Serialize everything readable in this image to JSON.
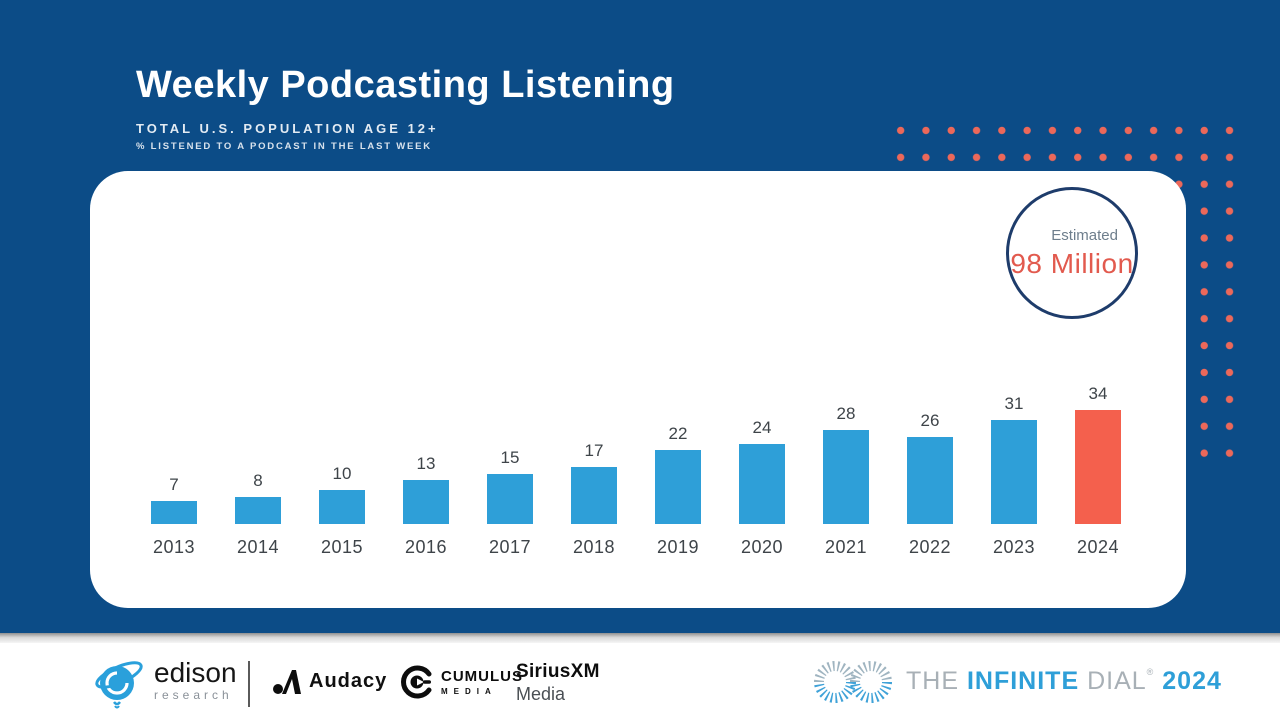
{
  "slide": {
    "title": "Weekly Podcasting Listening",
    "subtitle": "TOTAL U.S. POPULATION AGE 12+",
    "subtitle2": "% LISTENED TO A PODCAST IN THE LAST WEEK"
  },
  "badge": {
    "label": "Estimated",
    "value": "98 Million"
  },
  "chart_data": {
    "type": "bar",
    "categories": [
      "2013",
      "2014",
      "2015",
      "2016",
      "2017",
      "2018",
      "2019",
      "2020",
      "2021",
      "2022",
      "2023",
      "2024"
    ],
    "values": [
      7,
      8,
      10,
      13,
      15,
      17,
      22,
      24,
      28,
      26,
      31,
      34
    ],
    "title": "Weekly Podcasting Listening",
    "xlabel": "",
    "ylabel": "% listened to a podcast in the last week",
    "ylim": [
      0,
      40
    ],
    "grid": false,
    "value_labels": true,
    "bar_color": "#2E9FD8",
    "highlight_color": "#F4604D",
    "highlight_index": 11
  },
  "colors": {
    "background_navy": "#0C4C87",
    "card_white": "#FFFFFF",
    "dot_salmon": "#EC685A",
    "badge_border_navy": "#1E3C6B",
    "badge_value_orange": "#E25A4E",
    "accent_blue": "#2E9FD8"
  },
  "footer": {
    "edison": {
      "name": "edison",
      "sub": "research"
    },
    "audacy": {
      "name": "Audacy"
    },
    "cumulus": {
      "line1": "CUMULUS",
      "line2": "MEDIA"
    },
    "siriusxm": {
      "line1": "SiriusXM",
      "line2": "Media"
    },
    "infinite_dial": {
      "the": "THE",
      "infinite": "INFINITE",
      "dial": "DIAL",
      "reg": "®",
      "year": "2024"
    }
  }
}
